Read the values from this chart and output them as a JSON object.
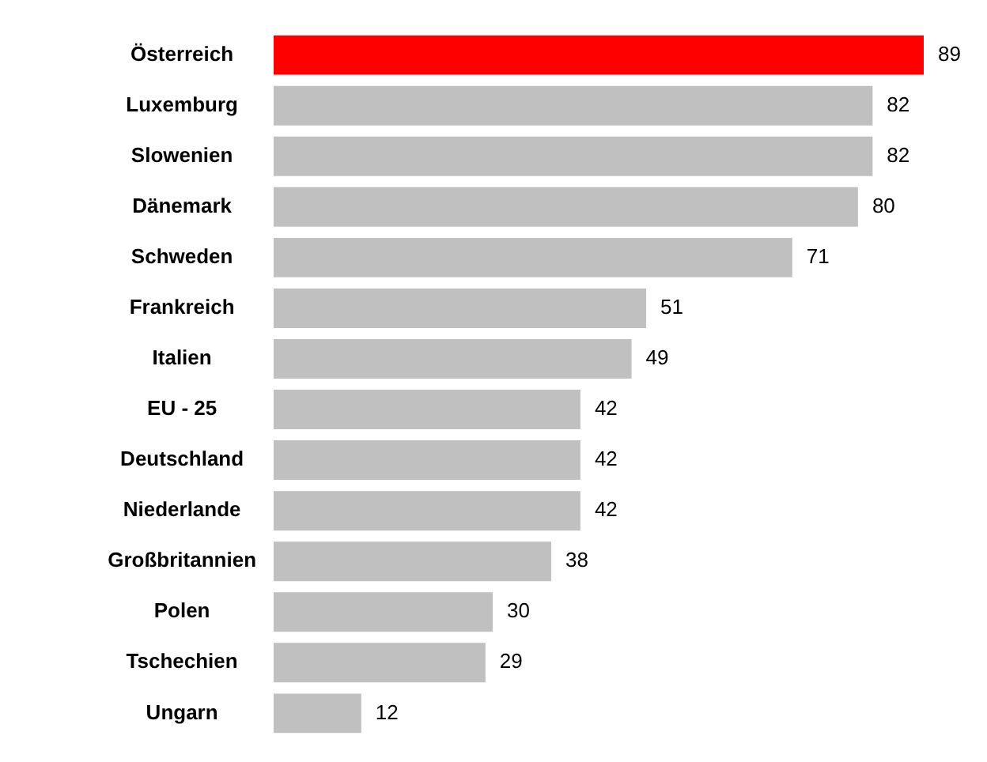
{
  "chart_data": {
    "type": "bar",
    "orientation": "horizontal",
    "categories": [
      "Österreich",
      "Luxemburg",
      "Slowenien",
      "Dänemark",
      "Schweden",
      "Frankreich",
      "Italien",
      "EU - 25",
      "Deutschland",
      "Niederlande",
      "Großbritannien",
      "Polen",
      "Tschechien",
      "Ungarn"
    ],
    "values": [
      89,
      82,
      82,
      80,
      71,
      51,
      49,
      42,
      42,
      42,
      38,
      30,
      29,
      12
    ],
    "colors": [
      "#ff0000",
      "#c0c0c0",
      "#c0c0c0",
      "#c0c0c0",
      "#c0c0c0",
      "#c0c0c0",
      "#c0c0c0",
      "#c0c0c0",
      "#c0c0c0",
      "#c0c0c0",
      "#c0c0c0",
      "#c0c0c0",
      "#c0c0c0",
      "#c0c0c0"
    ],
    "data_labels": true,
    "legend": false
  }
}
